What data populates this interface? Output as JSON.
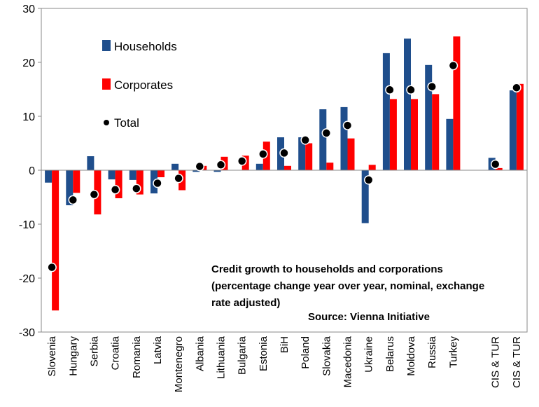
{
  "chart_data": {
    "type": "bar",
    "title": "",
    "xlabel": "",
    "ylabel": "",
    "ylim": [
      -30,
      30
    ],
    "yticks": [
      -30,
      -20,
      -10,
      0,
      10,
      20,
      30
    ],
    "grid": false,
    "legend_position": "top-left",
    "categories": [
      "Slovenia",
      "Hungary",
      "Serbia",
      "Croatia",
      "Romania",
      "Latvia",
      "Montenegro",
      "Albania",
      "Lithuania",
      "Bulgaria",
      "Estonia",
      "BiH",
      "Poland",
      "Slovakia",
      "Macedonia",
      "Ukraine",
      "Belarus",
      "Moldova",
      "Russia",
      "Turkey",
      "",
      "CIS & TUR",
      "CIS & TUR"
    ],
    "series": [
      {
        "name": "Households",
        "kind": "bar",
        "color": "#1f4e8c",
        "values": [
          -2.3,
          -6.5,
          2.6,
          -1.7,
          -1.8,
          -4.3,
          1.2,
          -0.3,
          -0.3,
          0.0,
          1.2,
          6.1,
          6.1,
          11.3,
          11.7,
          -9.8,
          21.7,
          24.4,
          19.5,
          9.5,
          null,
          2.3,
          14.8
        ]
      },
      {
        "name": "Corporates",
        "kind": "bar",
        "color": "#ff0000",
        "values": [
          -26.0,
          -4.2,
          -8.2,
          -5.2,
          -4.5,
          -1.3,
          -3.7,
          0.8,
          2.5,
          2.7,
          5.3,
          0.8,
          5.0,
          1.4,
          5.9,
          1.0,
          13.2,
          13.2,
          14.1,
          24.8,
          null,
          0.4,
          16.0
        ]
      },
      {
        "name": "Total",
        "kind": "point",
        "color": "#000000",
        "values": [
          -18.0,
          -5.5,
          -4.5,
          -3.6,
          -3.4,
          -2.4,
          -1.5,
          0.7,
          1.0,
          1.7,
          3.0,
          3.2,
          5.6,
          6.9,
          8.3,
          -1.8,
          14.9,
          14.9,
          15.5,
          19.4,
          null,
          1.1,
          15.3
        ]
      }
    ],
    "annotation": {
      "lines": [
        "Credit growth to households and corporations",
        "(percentage change year over year, nominal, exchange",
        "rate adjusted)"
      ],
      "source": "Source: Vienna Initiative"
    }
  }
}
